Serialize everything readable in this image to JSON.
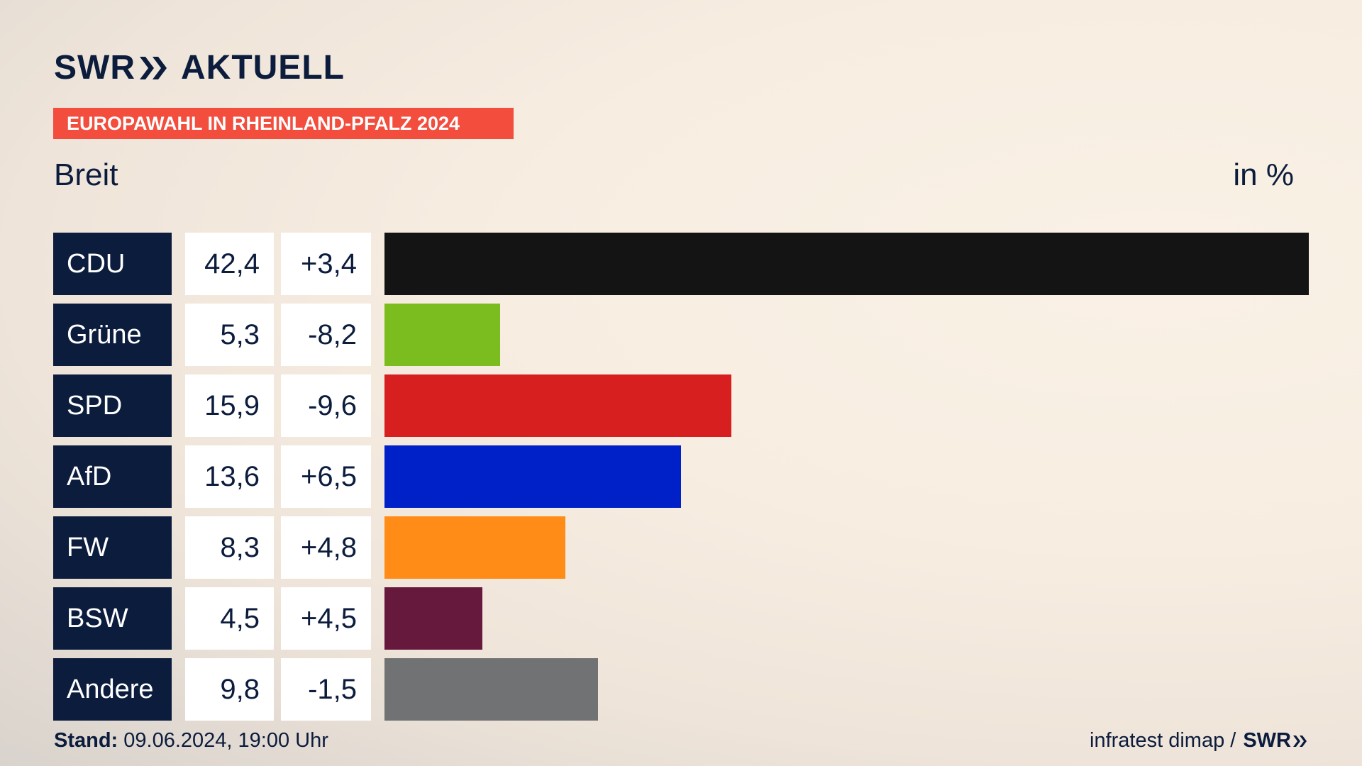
{
  "header": {
    "logo_left": "SWR",
    "logo_right": "AKTUELL",
    "banner": "EUROPAWAHL IN RHEINLAND-PFALZ 2024",
    "subtitle": "Breit",
    "unit": "in %"
  },
  "chart_data": {
    "type": "bar",
    "orientation": "horizontal",
    "categories": [
      "CDU",
      "Grüne",
      "SPD",
      "AfD",
      "FW",
      "BSW",
      "Andere"
    ],
    "values": [
      42.4,
      5.3,
      15.9,
      13.6,
      8.3,
      4.5,
      9.8
    ],
    "value_labels": [
      "42,4",
      "5,3",
      "15,9",
      "13,6",
      "8,3",
      "4,5",
      "9,8"
    ],
    "diff_labels": [
      "+3,4",
      "-8,2",
      "-9,6",
      "+6,5",
      "+4,8",
      "+4,5",
      "-1,5"
    ],
    "colors": [
      "#141414",
      "#7bbd1f",
      "#d71f1f",
      "#0021c8",
      "#ff8c16",
      "#66183d",
      "#717274"
    ],
    "xlim": [
      0,
      42.4
    ],
    "grid": false,
    "legend": "none"
  },
  "footer": {
    "stand_label": "Stand:",
    "stand_value": "09.06.2024, 19:00 Uhr",
    "source": "infratest dimap /",
    "source_logo": "SWR"
  },
  "colors": {
    "navy": "#0c1c3d",
    "banner": "#f24d3d"
  }
}
